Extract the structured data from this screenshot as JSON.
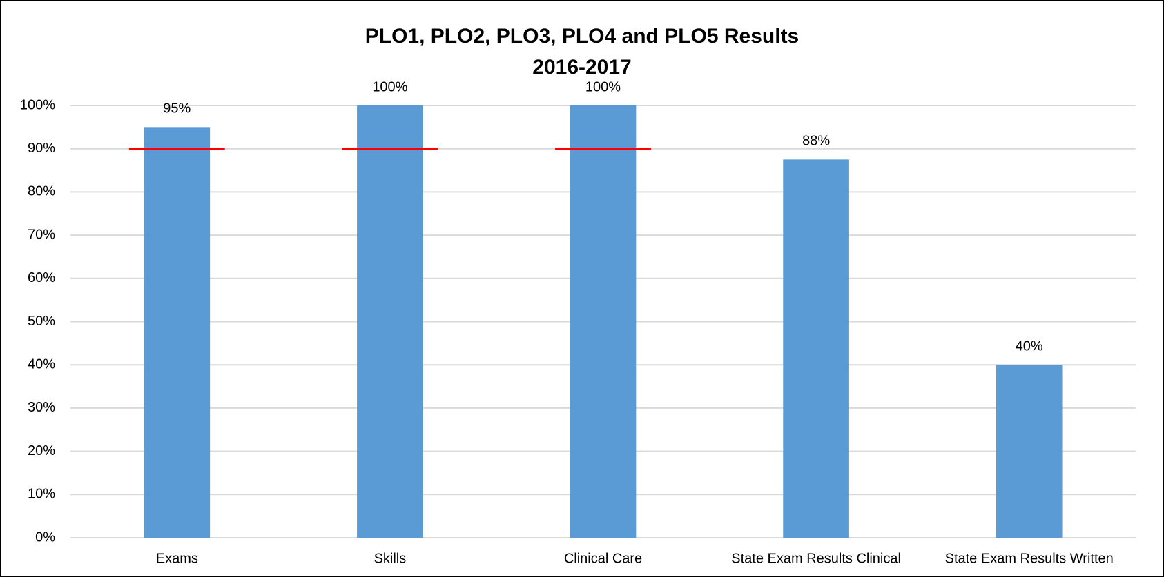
{
  "chart_data": {
    "type": "bar",
    "title": "PLO1, PLO2, PLO3, PLO4 and PLO5 Results",
    "subtitle": "2016-2017",
    "categories": [
      "Exams",
      "Skills",
      "Clinical Care",
      "State Exam Results Clinical",
      "State Exam Results Written"
    ],
    "values": [
      95,
      100,
      100,
      87.5,
      40
    ],
    "value_labels": [
      "95%",
      "100%",
      "100%",
      "88%",
      "40%"
    ],
    "targets": [
      90,
      90,
      90,
      null,
      null
    ],
    "target_color": "#ff0000",
    "color": "#5b9bd5",
    "ylim": [
      0,
      100
    ],
    "yticks": [
      {
        "value": 0,
        "label": "0%"
      },
      {
        "value": 10,
        "label": "10%"
      },
      {
        "value": 20,
        "label": "20%"
      },
      {
        "value": 30,
        "label": "30%"
      },
      {
        "value": 40,
        "label": "40%"
      },
      {
        "value": 50,
        "label": "50%"
      },
      {
        "value": 60,
        "label": "60%"
      },
      {
        "value": 70,
        "label": "70%"
      },
      {
        "value": 80,
        "label": "80%"
      },
      {
        "value": 90,
        "label": "90%"
      },
      {
        "value": 100,
        "label": "100%"
      }
    ],
    "grid": true
  }
}
